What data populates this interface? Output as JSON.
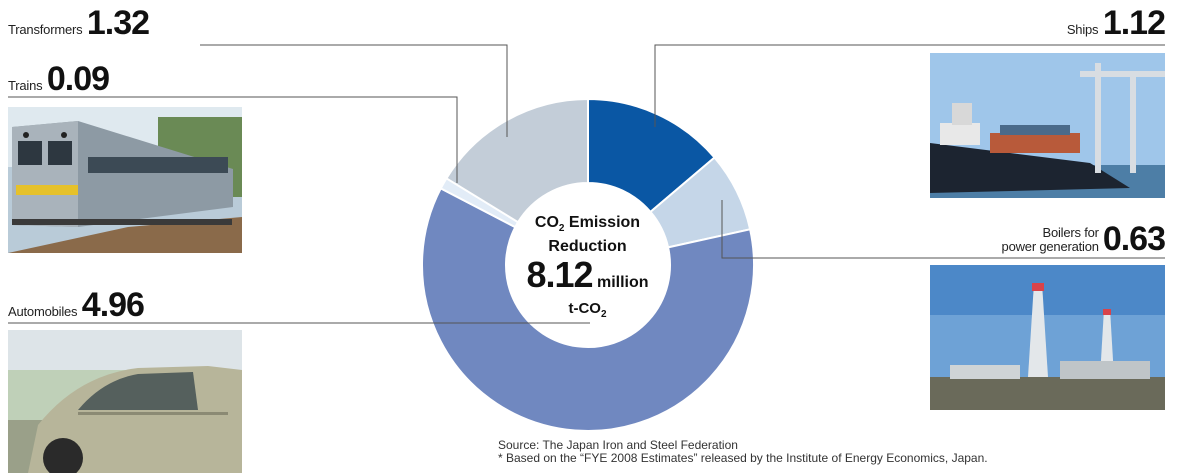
{
  "chart_data": {
    "type": "pie",
    "style": "donut",
    "unit": "million t-CO2",
    "slices": [
      {
        "label": "Ships",
        "value": 1.12,
        "color": "#0a57a4"
      },
      {
        "label": "Boilers for power generation",
        "value": 0.63,
        "color": "#c5d6e8"
      },
      {
        "label": "Automobiles",
        "value": 4.96,
        "color": "#7088c0"
      },
      {
        "label": "Trains",
        "value": 0.09,
        "color": "#e2ecf7"
      },
      {
        "label": "Transformers",
        "value": 1.32,
        "color": "#c3cdd8"
      }
    ],
    "center": {
      "title_line1": "CO",
      "title_sub": "2",
      "title_line1_rest": " Emission",
      "title_line2": "Reduction",
      "total": "8.12",
      "total_unit": "million",
      "unit_line_main": "t-CO",
      "unit_line_sub": "2"
    }
  },
  "labels": {
    "transformers": {
      "name": "Transformers",
      "value": "1.32"
    },
    "trains": {
      "name": "Trains",
      "value": "0.09"
    },
    "automobiles": {
      "name": "Automobiles",
      "value": "4.96"
    },
    "ships": {
      "name": "Ships",
      "value": "1.12"
    },
    "boilers": {
      "name_line1": "Boilers for",
      "name_line2": "power generation",
      "value": "0.63"
    }
  },
  "source": {
    "line1": "Source: The Japan Iron and Steel Federation",
    "line2": "* Based on the “FYE 2008 Estimates” released by the Institute of Energy Economics, Japan."
  },
  "photos": {
    "train": "train-photo",
    "car": "car-photo",
    "ship": "ship-photo",
    "plant": "power-plant-photo"
  }
}
